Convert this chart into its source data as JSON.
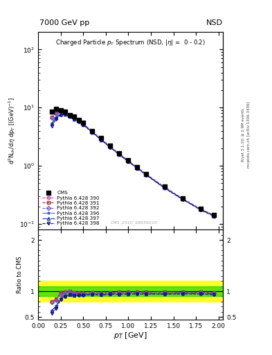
{
  "title_left": "7000 GeV pp",
  "title_right": "NSD",
  "plot_title": "Charged Particle p_{T} Spectrum (NSD, |\\eta| =  0 - 0.2)",
  "ylabel_main": "d^2N_{ch}/d\\eta dp_T [(GeV)^{-1}]",
  "ylabel_ratio": "Ratio to CMS",
  "xlabel": "p_{T} [GeV]",
  "watermark": "CMS_2010_S8656010",
  "right_label": "mcplots.cern.ch [arXiv:1306.3436]",
  "right_label2": "Rivet 3.1.10; ≥ 2.9M events",
  "pt_cms": [
    0.15,
    0.2,
    0.25,
    0.3,
    0.35,
    0.4,
    0.45,
    0.5,
    0.6,
    0.7,
    0.8,
    0.9,
    1.0,
    1.1,
    1.2,
    1.4,
    1.6,
    1.8,
    1.95
  ],
  "val_cms": [
    8.5,
    9.5,
    9.0,
    8.5,
    7.5,
    7.0,
    6.2,
    5.5,
    4.0,
    3.0,
    2.2,
    1.65,
    1.25,
    0.95,
    0.73,
    0.44,
    0.28,
    0.185,
    0.145
  ],
  "series": [
    {
      "label": "Pythia 6.428 390",
      "color": "#cc44aa",
      "marker": "o",
      "linestyle": "--",
      "pt": [
        0.15,
        0.2,
        0.25,
        0.3,
        0.35,
        0.4,
        0.45,
        0.5,
        0.6,
        0.7,
        0.8,
        0.9,
        1.0,
        1.1,
        1.2,
        1.4,
        1.6,
        1.8,
        1.95
      ],
      "val": [
        6.8,
        8.0,
        8.6,
        8.3,
        7.4,
        6.7,
        5.9,
        5.2,
        3.85,
        2.85,
        2.1,
        1.58,
        1.2,
        0.92,
        0.7,
        0.42,
        0.27,
        0.18,
        0.14
      ],
      "ratio": [
        0.8,
        0.84,
        0.96,
        0.98,
        0.99,
        0.96,
        0.95,
        0.95,
        0.96,
        0.95,
        0.95,
        0.96,
        0.96,
        0.97,
        0.96,
        0.955,
        0.96,
        0.97,
        0.965
      ]
    },
    {
      "label": "Pythia 6.428 391",
      "color": "#993333",
      "marker": "s",
      "linestyle": "--",
      "pt": [
        0.15,
        0.2,
        0.25,
        0.3,
        0.35,
        0.4,
        0.45,
        0.5,
        0.6,
        0.7,
        0.8,
        0.9,
        1.0,
        1.1,
        1.2,
        1.4,
        1.6,
        1.8,
        1.95
      ],
      "val": [
        6.8,
        8.1,
        8.7,
        8.4,
        7.5,
        6.8,
        6.0,
        5.3,
        3.9,
        2.9,
        2.15,
        1.62,
        1.23,
        0.94,
        0.72,
        0.435,
        0.275,
        0.182,
        0.142
      ],
      "ratio": [
        0.8,
        0.85,
        0.97,
        0.99,
        1.0,
        0.97,
        0.97,
        0.965,
        0.975,
        0.967,
        0.977,
        0.982,
        0.984,
        0.989,
        0.986,
        0.99,
        0.982,
        0.984,
        0.979
      ]
    },
    {
      "label": "Pythia 6.428 392",
      "color": "#7755bb",
      "marker": "D",
      "linestyle": "--",
      "pt": [
        0.15,
        0.2,
        0.25,
        0.3,
        0.35,
        0.4,
        0.45,
        0.5,
        0.6,
        0.7,
        0.8,
        0.9,
        1.0,
        1.1,
        1.2,
        1.4,
        1.6,
        1.8,
        1.95
      ],
      "val": [
        6.7,
        7.9,
        8.5,
        8.25,
        7.4,
        6.7,
        5.9,
        5.25,
        3.88,
        2.87,
        2.12,
        1.6,
        1.22,
        0.93,
        0.71,
        0.43,
        0.272,
        0.18,
        0.14
      ],
      "ratio": [
        0.79,
        0.83,
        0.94,
        0.97,
        0.99,
        0.96,
        0.952,
        0.955,
        0.97,
        0.957,
        0.964,
        0.97,
        0.976,
        0.979,
        0.973,
        0.977,
        0.971,
        0.973,
        0.966
      ]
    },
    {
      "label": "Pythia 6.428 396",
      "color": "#4466bb",
      "marker": "*",
      "linestyle": "-.",
      "pt": [
        0.15,
        0.2,
        0.25,
        0.3,
        0.35,
        0.4,
        0.45,
        0.5,
        0.6,
        0.7,
        0.8,
        0.9,
        1.0,
        1.1,
        1.2,
        1.4,
        1.6,
        1.8,
        1.95
      ],
      "val": [
        5.3,
        6.8,
        7.8,
        7.8,
        7.1,
        6.5,
        5.8,
        5.15,
        3.8,
        2.82,
        2.09,
        1.57,
        1.2,
        0.915,
        0.7,
        0.42,
        0.27,
        0.178,
        0.138
      ],
      "ratio": [
        0.62,
        0.716,
        0.867,
        0.918,
        0.947,
        0.929,
        0.935,
        0.936,
        0.95,
        0.94,
        0.95,
        0.952,
        0.96,
        0.963,
        0.959,
        0.955,
        0.964,
        0.962,
        0.952
      ]
    },
    {
      "label": "Pythia 6.428 397",
      "color": "#2233aa",
      "marker": "^",
      "linestyle": "-.",
      "pt": [
        0.15,
        0.2,
        0.25,
        0.3,
        0.35,
        0.4,
        0.45,
        0.5,
        0.6,
        0.7,
        0.8,
        0.9,
        1.0,
        1.1,
        1.2,
        1.4,
        1.6,
        1.8,
        1.95
      ],
      "val": [
        5.3,
        6.7,
        7.7,
        7.75,
        7.05,
        6.4,
        5.75,
        5.1,
        3.78,
        2.8,
        2.08,
        1.56,
        1.19,
        0.91,
        0.695,
        0.418,
        0.268,
        0.177,
        0.137
      ],
      "ratio": [
        0.624,
        0.705,
        0.856,
        0.912,
        0.94,
        0.914,
        0.927,
        0.927,
        0.945,
        0.933,
        0.945,
        0.945,
        0.952,
        0.957,
        0.952,
        0.95,
        0.957,
        0.957,
        0.945
      ]
    },
    {
      "label": "Pythia 6.428 398",
      "color": "#111188",
      "marker": "v",
      "linestyle": "--",
      "pt": [
        0.15,
        0.2,
        0.25,
        0.3,
        0.35,
        0.4,
        0.45,
        0.5,
        0.6,
        0.7,
        0.8,
        0.9,
        1.0,
        1.1,
        1.2,
        1.4,
        1.6,
        1.8,
        1.95
      ],
      "val": [
        4.8,
        6.3,
        7.5,
        7.6,
        7.0,
        6.4,
        5.7,
        5.05,
        3.75,
        2.78,
        2.07,
        1.55,
        1.18,
        0.9,
        0.69,
        0.415,
        0.265,
        0.175,
        0.135
      ],
      "ratio": [
        0.565,
        0.663,
        0.833,
        0.894,
        0.933,
        0.914,
        0.919,
        0.918,
        0.9375,
        0.927,
        0.941,
        0.939,
        0.944,
        0.947,
        0.945,
        0.943,
        0.946,
        0.946,
        0.931
      ]
    }
  ],
  "xlim": [
    0.0,
    2.05
  ],
  "ylim_main": [
    0.08,
    200
  ],
  "ylim_ratio": [
    0.45,
    2.2
  ],
  "band_green": [
    0.9,
    1.1
  ],
  "band_yellow": [
    0.8,
    1.2
  ],
  "background": "#ffffff"
}
